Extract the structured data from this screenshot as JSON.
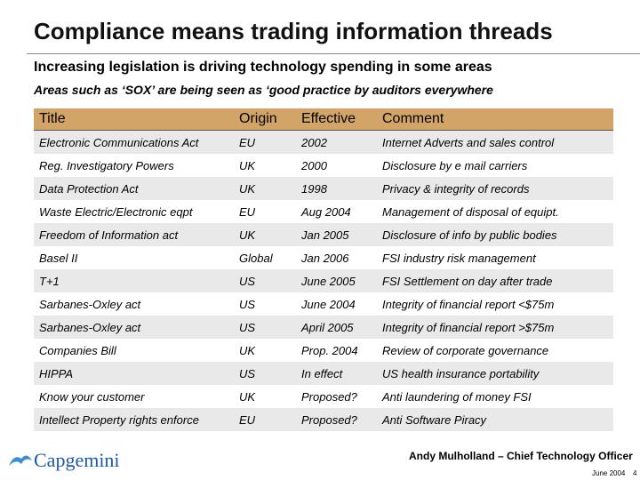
{
  "header": {
    "title": "Compliance means trading information threads",
    "subtitle": "Increasing legislation is driving technology spending in some areas",
    "note": "Areas such as ‘SOX’ are being seen as ‘good practice by auditors everywhere"
  },
  "table": {
    "columns": [
      "Title",
      "Origin",
      "Effective",
      "Comment"
    ],
    "rows": [
      [
        "Electronic Communications Act",
        "EU",
        "2002",
        "Internet Adverts and sales control"
      ],
      [
        "Reg. Investigatory Powers",
        "UK",
        "2000",
        "Disclosure by e mail carriers"
      ],
      [
        "Data Protection Act",
        "UK",
        "1998",
        "Privacy & integrity of records"
      ],
      [
        "Waste Electric/Electronic eqpt",
        "EU",
        "Aug 2004",
        "Management of disposal of equipt."
      ],
      [
        "Freedom of Information act",
        "UK",
        "Jan 2005",
        "Disclosure of info by public bodies"
      ],
      [
        "Basel II",
        "Global",
        "Jan 2006",
        "FSI industry risk management"
      ],
      [
        "T+1",
        "US",
        "June 2005",
        "FSI Settlement on day after trade"
      ],
      [
        "Sarbanes-Oxley act",
        "US",
        "June 2004",
        "Integrity of financial report <$75m"
      ],
      [
        "Sarbanes-Oxley act",
        "US",
        "April 2005",
        "Integrity of financial report >$75m"
      ],
      [
        "Companies Bill",
        "UK",
        "Prop. 2004",
        "Review of corporate governance"
      ],
      [
        "HIPPA",
        "US",
        "In effect",
        "US health insurance portability"
      ],
      [
        "Know your customer",
        "UK",
        "Proposed?",
        "Anti laundering of money FSI"
      ],
      [
        "Intellect Property rights enforce",
        "EU",
        "Proposed?",
        "Anti Software Piracy"
      ]
    ]
  },
  "footer": {
    "logo": "Capgemini",
    "author": "Andy Mulholland – Chief Technology Officer",
    "date": "June 2004",
    "page": "4"
  }
}
